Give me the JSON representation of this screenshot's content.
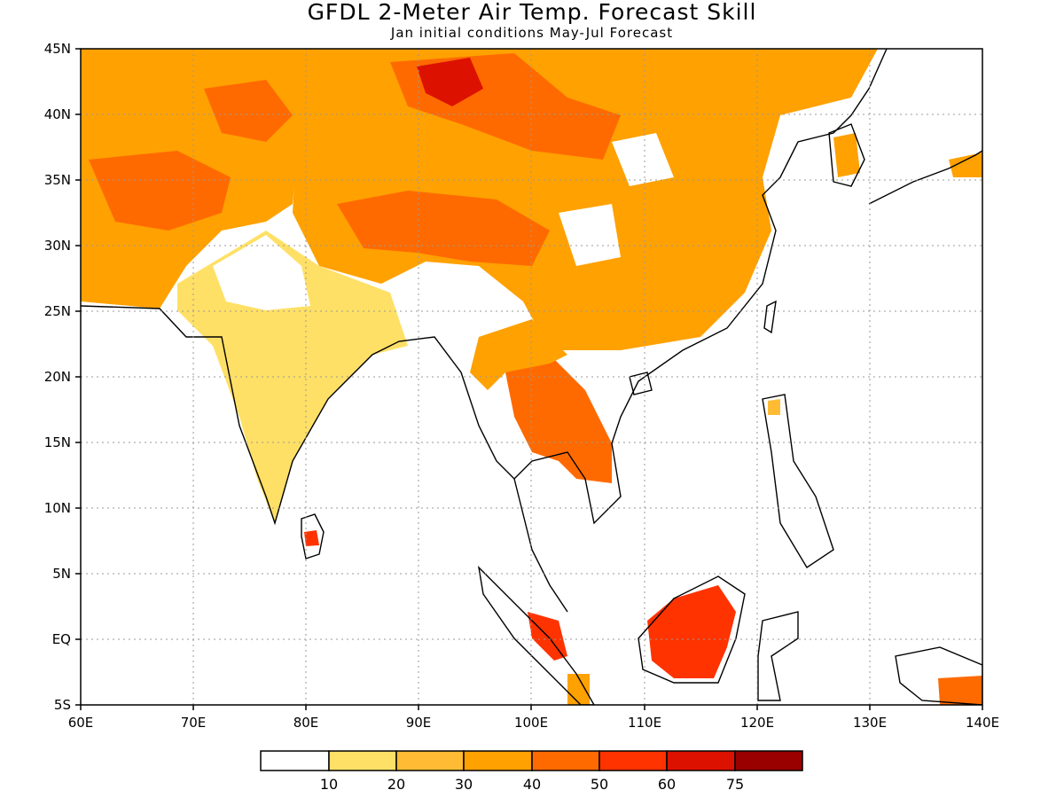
{
  "title": "GFDL 2-Meter Air Temp. Forecast Skill",
  "subtitle": "Jan initial conditions   May-Jul Forecast",
  "map": {
    "lon_range": [
      60,
      140
    ],
    "lat_range": [
      -5,
      45
    ],
    "x_ticks": [
      "60E",
      "70E",
      "80E",
      "90E",
      "100E",
      "110E",
      "120E",
      "130E",
      "140E"
    ],
    "y_ticks": [
      "5S",
      "EQ",
      "5N",
      "10N",
      "15N",
      "20N",
      "25N",
      "30N",
      "35N",
      "40N",
      "45N"
    ],
    "gridlines": "dotted"
  },
  "colorbar": {
    "colors": [
      "#ffffff",
      "#ffe066",
      "#ffbb33",
      "#ffa100",
      "#ff6a00",
      "#ff3300",
      "#dd1100",
      "#990000"
    ],
    "labels": [
      "10",
      "20",
      "30",
      "40",
      "50",
      "60",
      "75"
    ]
  }
}
